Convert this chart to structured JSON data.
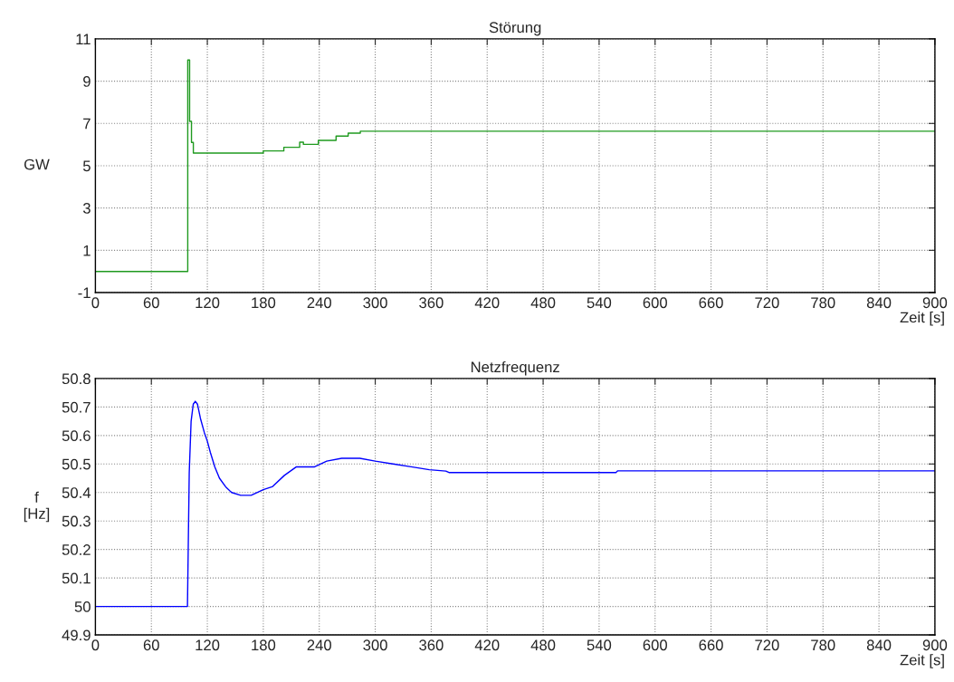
{
  "chart_data": [
    {
      "type": "step",
      "title": "Störung",
      "xlabel": "Zeit [s]",
      "ylabel": "GW",
      "grid": true,
      "line_style": "solid",
      "xlim": [
        0,
        900
      ],
      "ylim": [
        -1,
        11
      ],
      "xticks": [
        0,
        60,
        120,
        180,
        240,
        300,
        360,
        420,
        480,
        540,
        600,
        660,
        720,
        780,
        840,
        900
      ],
      "yticks": [
        -1,
        1,
        3,
        5,
        7,
        9,
        11
      ],
      "x": [
        0,
        99,
        101,
        103,
        105,
        174,
        180,
        202,
        219,
        223,
        239,
        258,
        271,
        284,
        900
      ],
      "series": [
        {
          "color": "#1f9a1f",
          "values": [
            0,
            10,
            7.1,
            6.1,
            5.6,
            5.6,
            5.7,
            5.87,
            6.11,
            6.01,
            6.2,
            6.4,
            6.54,
            6.63,
            6.63
          ]
        }
      ]
    },
    {
      "type": "line",
      "title": "Netzfrequenz",
      "xlabel": "Zeit [s]",
      "ylabel": "f\n[Hz]",
      "grid": true,
      "line_style": "solid",
      "xlim": [
        0,
        900
      ],
      "ylim": [
        49.9,
        50.8
      ],
      "xticks": [
        0,
        60,
        120,
        180,
        240,
        300,
        360,
        420,
        480,
        540,
        600,
        660,
        720,
        780,
        840,
        900
      ],
      "yticks": [
        49.9,
        50,
        50.1,
        50.2,
        50.3,
        50.4,
        50.5,
        50.6,
        50.7,
        50.8
      ],
      "x": [
        0,
        98.7,
        100.6,
        102.6,
        104.9,
        107.1,
        109.4,
        112.6,
        116.8,
        120,
        123.3,
        128,
        133,
        139.6,
        146,
        155.7,
        167,
        180,
        189.6,
        202.6,
        215.5,
        235,
        248,
        264,
        277,
        283.5,
        300,
        319,
        338.5,
        358,
        375.7,
        379,
        558,
        560,
        900
      ],
      "series": [
        {
          "color": "#0000ff",
          "values": [
            50,
            50,
            50.47,
            50.65,
            50.71,
            50.72,
            50.71,
            50.66,
            50.61,
            50.58,
            50.54,
            50.49,
            50.45,
            50.42,
            50.4,
            50.39,
            50.39,
            50.41,
            50.42,
            50.46,
            50.49,
            50.49,
            50.51,
            50.52,
            50.52,
            50.52,
            50.51,
            50.5,
            50.49,
            50.48,
            50.475,
            50.47,
            50.47,
            50.476,
            50.476
          ]
        }
      ]
    }
  ]
}
